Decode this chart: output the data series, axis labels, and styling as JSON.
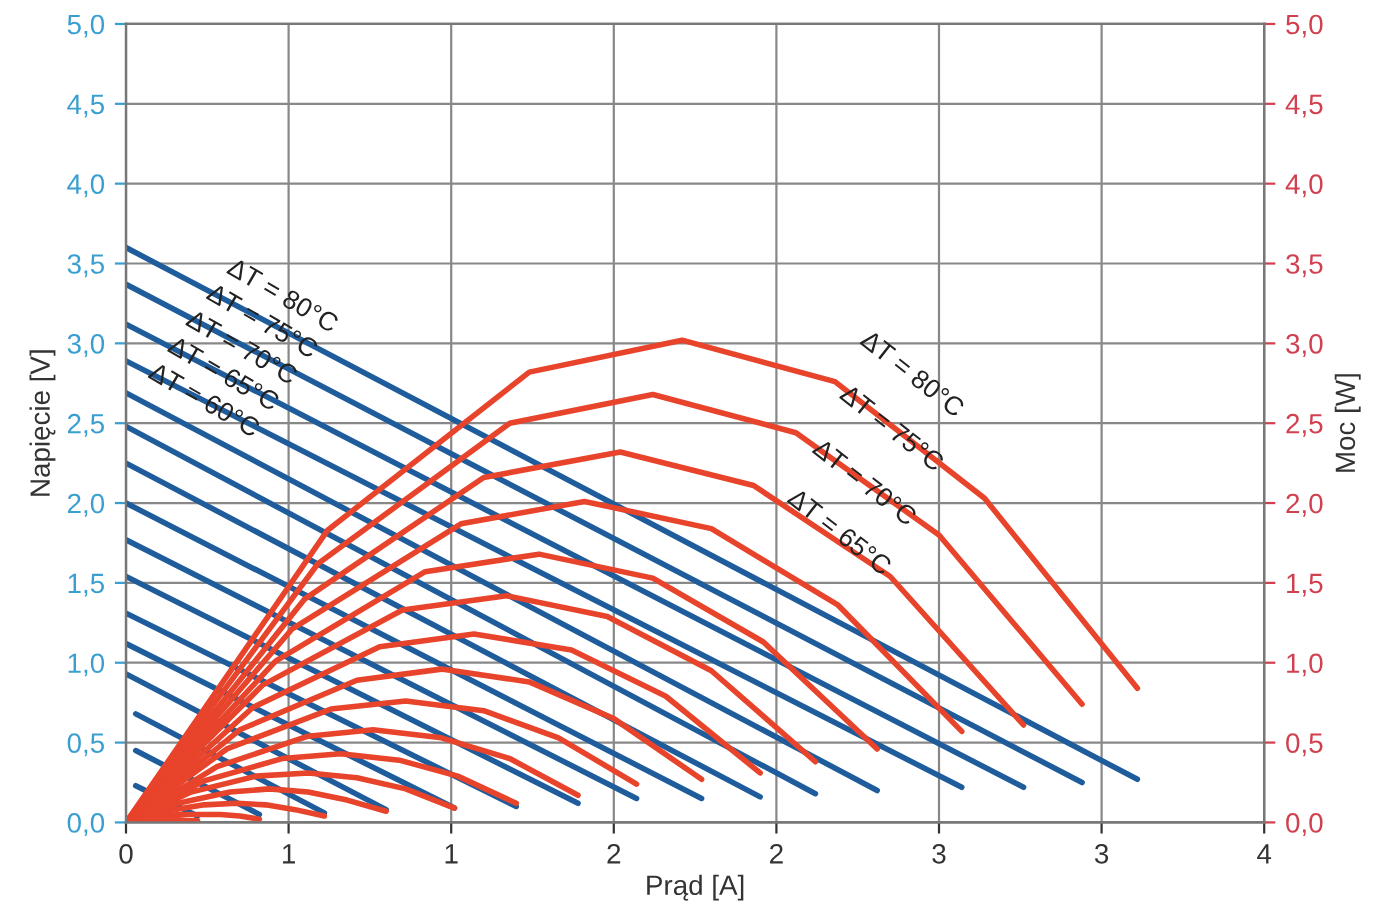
{
  "chart_data": {
    "type": "line",
    "xlabel": "Prąd [A]",
    "ylabel": "Napięcie [V]",
    "y2label": "Moc [W]",
    "grid": true,
    "marker": "none",
    "line_style": "solid",
    "xlim": [
      0,
      3.5
    ],
    "xticks": [
      0,
      {
        "value": 0.5,
        "label": "1"
      },
      {
        "value": 1,
        "label": "1"
      },
      {
        "value": 1.5,
        "label": "2"
      },
      {
        "value": 2,
        "label": "2"
      },
      {
        "value": 2.5,
        "label": "3"
      },
      {
        "value": 3,
        "label": "3"
      },
      {
        "value": 3.5,
        "label": "4"
      }
    ],
    "ylim": [
      0,
      5
    ],
    "yticks": [
      {
        "value": 0,
        "label": "0,0"
      },
      {
        "value": 0.5,
        "label": "0,5"
      },
      {
        "value": 1,
        "label": "1,0"
      },
      {
        "value": 1.5,
        "label": "1,5"
      },
      {
        "value": 2,
        "label": "2,0"
      },
      {
        "value": 2.5,
        "label": "2,5"
      },
      {
        "value": 3,
        "label": "3,0"
      },
      {
        "value": 3.5,
        "label": "3,5"
      },
      {
        "value": 4,
        "label": "4,0"
      },
      {
        "value": 4.5,
        "label": "4,5"
      },
      {
        "value": 5,
        "label": "5,0"
      }
    ],
    "y2lim": [
      0,
      5
    ],
    "y2ticks": [
      {
        "value": 0,
        "label": "0,0"
      },
      {
        "value": 0.5,
        "label": "0,5"
      },
      {
        "value": 1,
        "label": "1,0"
      },
      {
        "value": 1.5,
        "label": "1,5"
      },
      {
        "value": 2,
        "label": "2,0"
      },
      {
        "value": 2.5,
        "label": "2,5"
      },
      {
        "value": 3,
        "label": "3,0"
      },
      {
        "value": 3.5,
        "label": "3,5"
      },
      {
        "value": 4,
        "label": "4,0"
      },
      {
        "value": 4.5,
        "label": "4,5"
      },
      {
        "value": 5,
        "label": "5,0"
      }
    ],
    "series": [
      {
        "color": "#1f5c9c",
        "x": [
          0,
          3.11
        ],
        "values": [
          3.6,
          0.27
        ]
      },
      {
        "color": "#1f5c9c",
        "x": [
          0,
          2.94
        ],
        "values": [
          3.37,
          0.25
        ]
      },
      {
        "color": "#1f5c9c",
        "x": [
          0,
          2.76
        ],
        "values": [
          3.12,
          0.22
        ]
      },
      {
        "color": "#1f5c9c",
        "x": [
          0,
          2.57
        ],
        "values": [
          2.89,
          0.22
        ]
      },
      {
        "color": "#1f5c9c",
        "x": [
          0,
          2.31
        ],
        "values": [
          2.69,
          0.2
        ]
      },
      {
        "color": "#1f5c9c",
        "x": [
          0,
          2.12
        ],
        "values": [
          2.48,
          0.18
        ]
      },
      {
        "color": "#1f5c9c",
        "x": [
          0,
          1.95
        ],
        "values": [
          2.25,
          0.16
        ]
      },
      {
        "color": "#1f5c9c",
        "x": [
          0,
          1.77
        ],
        "values": [
          2.0,
          0.15
        ]
      },
      {
        "color": "#1f5c9c",
        "x": [
          0,
          1.57
        ],
        "values": [
          1.77,
          0.15
        ]
      },
      {
        "color": "#1f5c9c",
        "x": [
          0,
          1.39
        ],
        "values": [
          1.54,
          0.12
        ]
      },
      {
        "color": "#1f5c9c",
        "x": [
          0,
          1.2
        ],
        "values": [
          1.31,
          0.1
        ]
      },
      {
        "color": "#1f5c9c",
        "x": [
          0,
          1.01
        ],
        "values": [
          1.12,
          0.09
        ]
      },
      {
        "color": "#1f5c9c",
        "x": [
          0,
          0.8
        ],
        "values": [
          0.93,
          0.08
        ]
      },
      {
        "color": "#1f5c9c",
        "x": [
          0.03,
          0.61
        ],
        "values": [
          0.68,
          0.06
        ]
      },
      {
        "color": "#1f5c9c",
        "x": [
          0.03,
          0.41
        ],
        "values": [
          0.45,
          0.05
        ]
      },
      {
        "color": "#1f5c9c",
        "x": [
          0.03,
          0.22
        ],
        "values": [
          0.23,
          0.04
        ]
      },
      {
        "axis": "y2",
        "color": "#e8432b",
        "x": [
          0,
          0.62,
          1.24,
          1.71,
          2.18,
          2.64,
          3.11
        ],
        "values": [
          0,
          1.83,
          2.82,
          3.02,
          2.76,
          2.03,
          0.84
        ]
      },
      {
        "axis": "y2",
        "color": "#e8432b",
        "x": [
          0,
          0.59,
          1.18,
          1.62,
          2.06,
          2.5,
          2.94
        ],
        "values": [
          0,
          1.62,
          2.5,
          2.68,
          2.44,
          1.8,
          0.74
        ]
      },
      {
        "axis": "y2",
        "color": "#e8432b",
        "x": [
          0,
          0.55,
          1.1,
          1.52,
          1.93,
          2.35,
          2.76
        ],
        "values": [
          0,
          1.4,
          2.16,
          2.32,
          2.11,
          1.54,
          0.61
        ]
      },
      {
        "axis": "y2",
        "color": "#e8432b",
        "x": [
          0,
          0.51,
          1.03,
          1.41,
          1.8,
          2.19,
          2.57
        ],
        "values": [
          0,
          1.21,
          1.87,
          2.01,
          1.84,
          1.36,
          0.57
        ]
      },
      {
        "axis": "y2",
        "color": "#e8432b",
        "x": [
          0,
          0.46,
          0.92,
          1.27,
          1.62,
          1.96,
          2.31
        ],
        "values": [
          0,
          1.01,
          1.57,
          1.68,
          1.53,
          1.13,
          0.46
        ]
      },
      {
        "axis": "y2",
        "color": "#e8432b",
        "x": [
          0,
          0.42,
          0.85,
          1.17,
          1.48,
          1.8,
          2.12
        ],
        "values": [
          0,
          0.86,
          1.33,
          1.42,
          1.29,
          0.95,
          0.38
        ]
      },
      {
        "axis": "y2",
        "color": "#e8432b",
        "x": [
          0,
          0.39,
          0.78,
          1.07,
          1.37,
          1.66,
          1.95
        ],
        "values": [
          0,
          0.72,
          1.1,
          1.18,
          1.08,
          0.79,
          0.31
        ]
      },
      {
        "axis": "y2",
        "color": "#e8432b",
        "x": [
          0,
          0.35,
          0.71,
          0.97,
          1.24,
          1.5,
          1.77
        ],
        "values": [
          0,
          0.58,
          0.89,
          0.96,
          0.88,
          0.65,
          0.27
        ]
      },
      {
        "axis": "y2",
        "color": "#e8432b",
        "x": [
          0,
          0.31,
          0.63,
          0.86,
          1.1,
          1.33,
          1.57
        ],
        "values": [
          0,
          0.46,
          0.71,
          0.76,
          0.7,
          0.53,
          0.24
        ]
      },
      {
        "axis": "y2",
        "color": "#e8432b",
        "x": [
          0,
          0.28,
          0.56,
          0.76,
          0.97,
          1.18,
          1.39
        ],
        "values": [
          0,
          0.35,
          0.54,
          0.58,
          0.53,
          0.4,
          0.17
        ]
      },
      {
        "axis": "y2",
        "color": "#e8432b",
        "x": [
          0,
          0.24,
          0.48,
          0.66,
          0.84,
          1.02,
          1.2
        ],
        "values": [
          0,
          0.26,
          0.4,
          0.43,
          0.39,
          0.29,
          0.12
        ]
      },
      {
        "axis": "y2",
        "color": "#e8432b",
        "x": [
          0,
          0.2,
          0.4,
          0.56,
          0.71,
          0.86,
          1.01
        ],
        "values": [
          0,
          0.19,
          0.29,
          0.31,
          0.28,
          0.21,
          0.09
        ]
      },
      {
        "axis": "y2",
        "color": "#e8432b",
        "x": [
          0,
          0.16,
          0.32,
          0.44,
          0.56,
          0.68,
          0.8
        ],
        "values": [
          0,
          0.12,
          0.19,
          0.21,
          0.19,
          0.14,
          0.07
        ]
      },
      {
        "axis": "y2",
        "color": "#e8432b",
        "x": [
          0,
          0.12,
          0.24,
          0.34,
          0.43,
          0.52,
          0.61
        ],
        "values": [
          0,
          0.07,
          0.11,
          0.12,
          0.11,
          0.08,
          0.04
        ]
      },
      {
        "axis": "y2",
        "color": "#e8432b",
        "x": [
          0,
          0.08,
          0.16,
          0.23,
          0.29,
          0.35,
          0.41
        ],
        "values": [
          0,
          0.03,
          0.05,
          0.05,
          0.05,
          0.04,
          0.02
        ]
      },
      {
        "axis": "y2",
        "color": "#e8432b",
        "x": [
          0,
          0.04,
          0.09,
          0.12,
          0.15,
          0.19,
          0.22
        ],
        "values": [
          0,
          0.01,
          0.02,
          0.02,
          0.02,
          0.01,
          0.01
        ]
      }
    ],
    "annotations": [
      "ΔT = 80°C",
      "ΔT = 75°C",
      "ΔT = 70°C",
      "ΔT = 65°C",
      "ΔT = 60°C",
      "ΔT = 80°C",
      "ΔT = 75°C",
      "ΔT = 70°C",
      "ΔT = 65°C"
    ]
  }
}
